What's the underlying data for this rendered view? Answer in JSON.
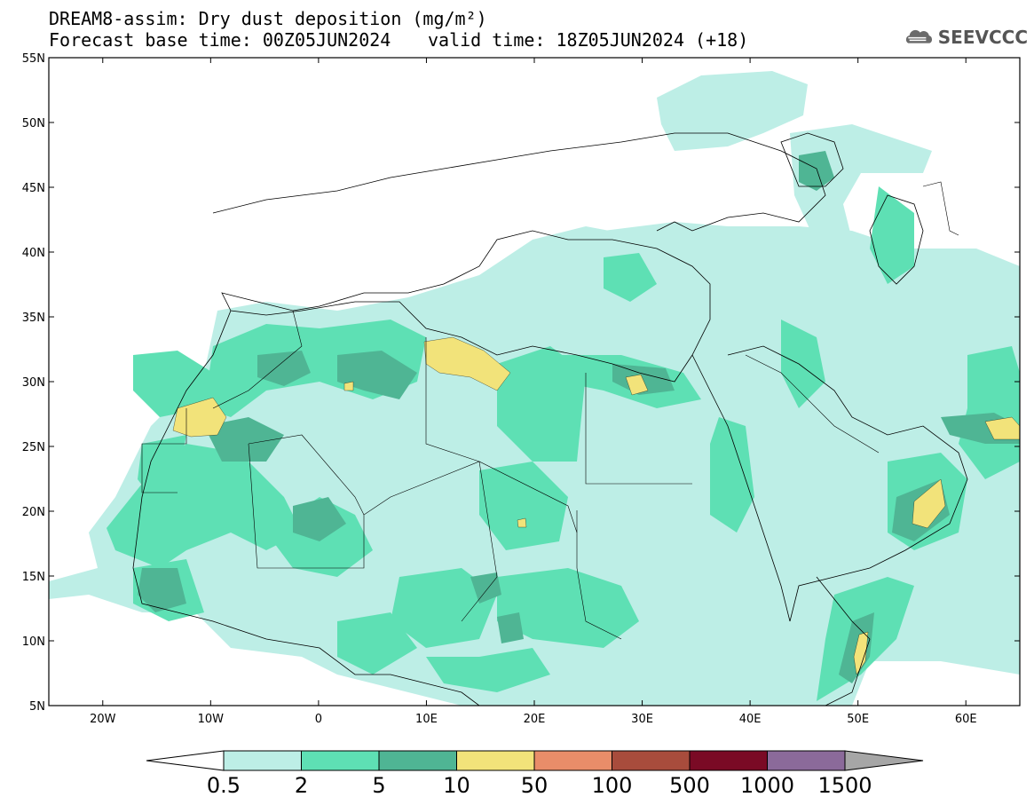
{
  "title": {
    "line1": "DREAM8-assim: Dry dust deposition (mg/m²)",
    "line2": "Forecast base time: 00Z05JUN2024",
    "valid": "valid time: 18Z05JUN2024 (+18)"
  },
  "logo": {
    "text": "SEEVCCC",
    "icon": "cloud-logo-icon"
  },
  "map": {
    "lon_range": [
      -25,
      65
    ],
    "lat_range": [
      5,
      55
    ],
    "lat_ticks": [
      {
        "value": 55,
        "label": "55N"
      },
      {
        "value": 50,
        "label": "50N"
      },
      {
        "value": 45,
        "label": "45N"
      },
      {
        "value": 40,
        "label": "40N"
      },
      {
        "value": 35,
        "label": "35N"
      },
      {
        "value": 30,
        "label": "30N"
      },
      {
        "value": 25,
        "label": "25N"
      },
      {
        "value": 20,
        "label": "20N"
      },
      {
        "value": 15,
        "label": "15N"
      },
      {
        "value": 10,
        "label": "10N"
      },
      {
        "value": 5,
        "label": "5N"
      }
    ],
    "lon_ticks": [
      {
        "value": -20,
        "label": "20W"
      },
      {
        "value": -10,
        "label": "10W"
      },
      {
        "value": 0,
        "label": "0"
      },
      {
        "value": 10,
        "label": "10E"
      },
      {
        "value": 20,
        "label": "20E"
      },
      {
        "value": 30,
        "label": "30E"
      },
      {
        "value": 40,
        "label": "40E"
      },
      {
        "value": 50,
        "label": "50E"
      },
      {
        "value": 60,
        "label": "60E"
      }
    ],
    "colors": {
      "c1": "#bdeee6",
      "c2": "#5ee0b4",
      "c3": "#4fb594",
      "c4": "#f2e37a"
    }
  },
  "colorbar": {
    "colors": [
      "#bdeee6",
      "#5ee0b4",
      "#4fb594",
      "#f2e37a",
      "#e98d69",
      "#a84c3c",
      "#7a0a25",
      "#8b6a9a"
    ],
    "under_color": "#ffffff",
    "over_color": "#a6a6a6",
    "labels": [
      "0.5",
      "2",
      "5",
      "10",
      "50",
      "100",
      "500",
      "1000",
      "1500"
    ]
  }
}
